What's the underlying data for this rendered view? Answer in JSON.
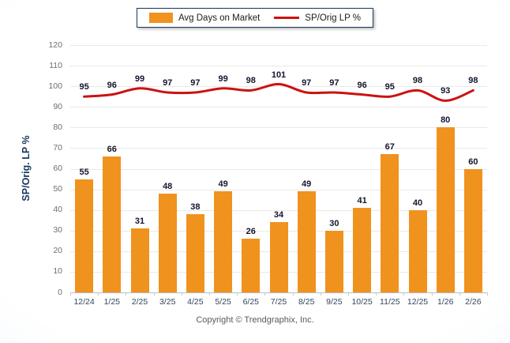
{
  "chart_data": {
    "type": "bar",
    "title": "",
    "categories": [
      "12/24",
      "1/25",
      "2/25",
      "3/25",
      "4/25",
      "5/25",
      "6/25",
      "7/25",
      "8/25",
      "9/25",
      "10/25",
      "11/25",
      "12/25",
      "1/26",
      "2/26"
    ],
    "series": [
      {
        "name": "Avg Days on Market",
        "type": "bar",
        "color": "#F0921E",
        "values": [
          55,
          66,
          31,
          48,
          38,
          49,
          26,
          34,
          49,
          30,
          41,
          67,
          40,
          80,
          60
        ]
      },
      {
        "name": "SP/Orig LP %",
        "type": "line",
        "color": "#CC1111",
        "values": [
          95,
          96,
          99,
          97,
          97,
          99,
          98,
          101,
          97,
          97,
          96,
          95,
          98,
          93,
          98
        ]
      }
    ],
    "ylabel": "SP/Orig. LP %",
    "xlabel": "",
    "ylim": [
      0,
      120
    ],
    "yticks": [
      0,
      10,
      20,
      30,
      40,
      50,
      60,
      70,
      80,
      90,
      100,
      110,
      120
    ],
    "grid": true,
    "legend_position": "top-center"
  },
  "colors": {
    "bar": "#F0921E",
    "line": "#CC1111",
    "value_label": "#15152e",
    "ytick_label": "#6e6e6e",
    "xtick_label": "#31455c",
    "axis_title": "#17375E",
    "grid": "#e9e9e9",
    "axis_line": "#bdbdbd",
    "tick": "#c9c9c9",
    "legend_border": "#17375E",
    "footer_text": "#595959"
  },
  "footer": {
    "copyright": "Copyright © Trendgraphix, Inc."
  }
}
